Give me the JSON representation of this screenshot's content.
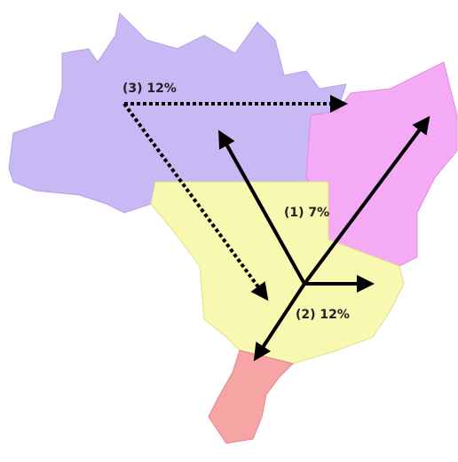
{
  "labels": [
    "(1) 7%",
    "(2) 12%",
    "(3) 12%"
  ]
}
